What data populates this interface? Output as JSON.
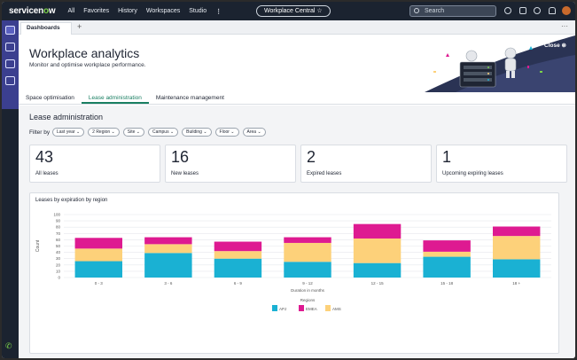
{
  "nav": {
    "brand_a": "servicen",
    "brand_b": "w",
    "items": [
      "All",
      "Favorites",
      "History",
      "Workspaces",
      "Studio"
    ],
    "more": "⋮",
    "workspace_pill": "Workplace Central ☆",
    "search_placeholder": "Search"
  },
  "tabs": {
    "dashboards": "Dashboards",
    "add": "+",
    "more": "···"
  },
  "header": {
    "title": "Workplace analytics",
    "subtitle": "Monitor and optimise workplace performance.",
    "close": "Close ⊗"
  },
  "section_tabs": [
    {
      "label": "Space optimisation",
      "active": false
    },
    {
      "label": "Lease administration",
      "active": true
    },
    {
      "label": "Maintenance management",
      "active": false
    }
  ],
  "section_title": "Lease administration",
  "filter": {
    "label": "Filter by",
    "pills": [
      "Last year ⌄",
      "2  Region ⌄",
      "Site ⌄",
      "Campus ⌄",
      "Building ⌄",
      "Floor ⌄",
      "Area ⌄"
    ]
  },
  "kpis": [
    {
      "value": "43",
      "label": "All leases"
    },
    {
      "value": "16",
      "label": "New leases"
    },
    {
      "value": "2",
      "label": "Expired leases"
    },
    {
      "value": "1",
      "label": "Upcoming expiring leases"
    }
  ],
  "colors": {
    "apj": "#1ab1d3",
    "emea": "#de1a91",
    "ams": "#fdd17a",
    "accent": "#1a7f62"
  },
  "chart_data": {
    "type": "bar",
    "stacked": true,
    "title": "Leases by expiration by region",
    "xlabel": "Duration in months",
    "ylabel": "Count",
    "ylim": [
      0,
      100
    ],
    "yticks": [
      "0",
      "10",
      "20",
      "30",
      "40",
      "50",
      "60",
      "70",
      "80",
      "90",
      "100"
    ],
    "categories": [
      "0 - 3",
      "3 - 6",
      "6 - 9",
      "9 - 12",
      "12 - 15",
      "15 - 18",
      "18 +"
    ],
    "series": [
      {
        "name": "APJ",
        "values": [
          26,
          39,
          30,
          25,
          23,
          33,
          29
        ]
      },
      {
        "name": "EMEA",
        "values": [
          17,
          11,
          15,
          9,
          23,
          18,
          15
        ]
      },
      {
        "name": "AMS",
        "values": [
          20,
          14,
          12,
          30,
          39,
          8,
          37
        ]
      }
    ],
    "legend_title": "Regions",
    "legend_position": "bottom",
    "grid": true
  }
}
